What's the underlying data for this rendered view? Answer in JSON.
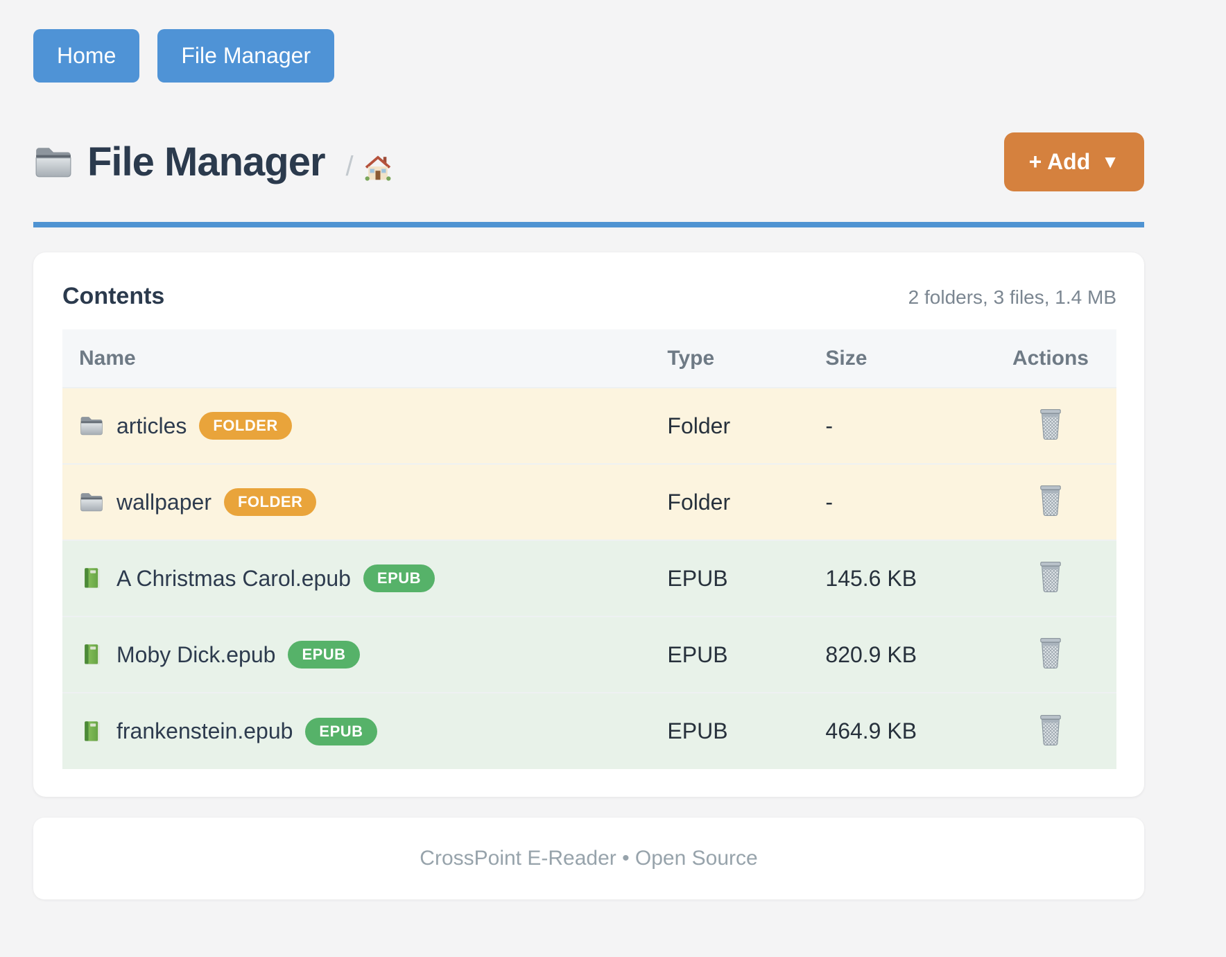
{
  "nav": {
    "buttons": [
      {
        "label": "Home"
      },
      {
        "label": "File Manager"
      }
    ]
  },
  "header": {
    "title": "File Manager",
    "title_icon": "folder-icon",
    "breadcrumb_separator": "/",
    "breadcrumb_home_icon": "house-icon",
    "add_button_label": "+ Add",
    "add_button_caret": "▼"
  },
  "card": {
    "title": "Contents",
    "summary": "2 folders, 3 files, 1.4 MB",
    "table": {
      "headers": [
        "Name",
        "Type",
        "Size",
        "Actions"
      ],
      "rows": [
        {
          "name": "articles",
          "badge": "FOLDER",
          "kind": "folder",
          "icon": "folder-icon",
          "type": "Folder",
          "size": "-",
          "action_icon": "trash-icon"
        },
        {
          "name": "wallpaper",
          "badge": "FOLDER",
          "kind": "folder",
          "icon": "folder-icon",
          "type": "Folder",
          "size": "-",
          "action_icon": "trash-icon"
        },
        {
          "name": "A Christmas Carol.epub",
          "badge": "EPUB",
          "kind": "epub",
          "icon": "book-icon",
          "type": "EPUB",
          "size": "145.6 KB",
          "action_icon": "trash-icon"
        },
        {
          "name": "Moby Dick.epub",
          "badge": "EPUB",
          "kind": "epub",
          "icon": "book-icon",
          "type": "EPUB",
          "size": "820.9 KB",
          "action_icon": "trash-icon"
        },
        {
          "name": "frankenstein.epub",
          "badge": "EPUB",
          "kind": "epub",
          "icon": "book-icon",
          "type": "EPUB",
          "size": "464.9 KB",
          "action_icon": "trash-icon"
        }
      ]
    }
  },
  "footer": {
    "text": "CrossPoint E-Reader • Open Source"
  },
  "colors": {
    "nav_button": "#4f93d6",
    "add_button": "#d5813e",
    "rule": "#4f93d2",
    "badge_folder": "#e9a43b",
    "badge_epub": "#56b269",
    "row_folder_bg": "#fcf4df",
    "row_epub_bg": "#e8f2e9",
    "page_bg": "#f4f4f5"
  }
}
